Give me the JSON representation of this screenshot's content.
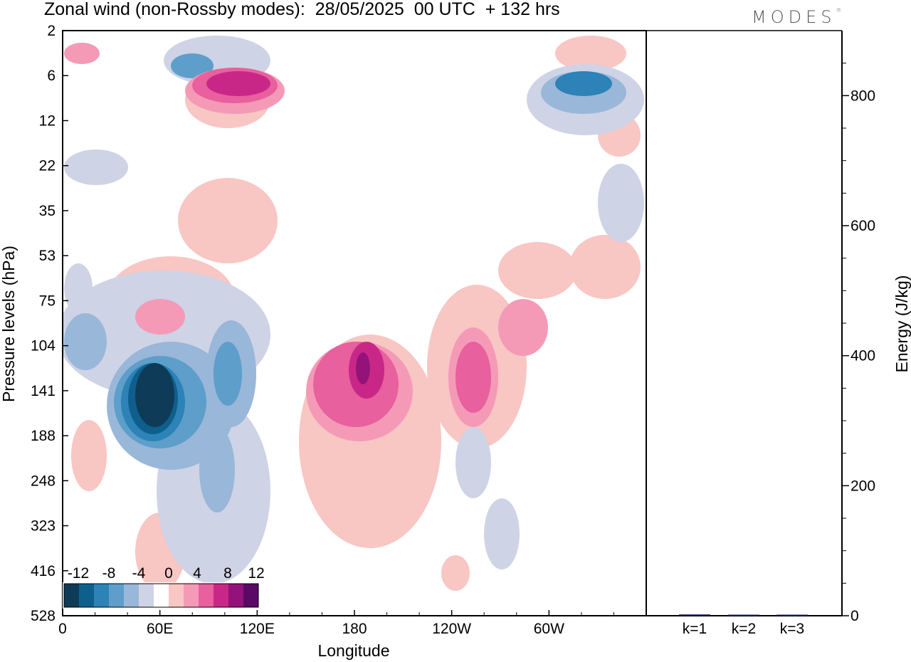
{
  "title": "Zonal wind (non-Rossby modes):  28/05/2025  00 UTC  + 132 hrs",
  "logo": {
    "text": "MODES",
    "mark": "®"
  },
  "chart_data": [
    {
      "type": "heatmap",
      "xlabel": "Longitude",
      "ylabel": "Pressure levels (hPa)",
      "x_ticks": [
        "0",
        "60E",
        "120E",
        "180",
        "120W",
        "60W"
      ],
      "y_ticks": [
        "2",
        "6",
        "12",
        "22",
        "35",
        "53",
        "75",
        "104",
        "141",
        "188",
        "248",
        "323",
        "416",
        "528"
      ],
      "y_reversed": true,
      "colorbar": {
        "labels": [
          "-12",
          "-8",
          "-4",
          "0",
          "4",
          "8",
          "12"
        ],
        "levels": [
          -14,
          -12,
          -10,
          -8,
          -6,
          -4,
          -2,
          2,
          4,
          6,
          8,
          10,
          12,
          14
        ],
        "colors": [
          "#0e3b57",
          "#0f5f8d",
          "#2d82b7",
          "#5d9ecb",
          "#99b7d8",
          "#cfd3e6",
          "#ffffff",
          "#f8c6c3",
          "#f49ab7",
          "#e8609d",
          "#c92788",
          "#94137a",
          "#5a0a64"
        ]
      },
      "features": [
        {
          "name": "negative jet core near 60E 141 hPa",
          "lon": 60,
          "level_hPa": 141,
          "value": -14
        },
        {
          "name": "negative core near 100E 141 hPa",
          "lon": 100,
          "level_hPa": 141,
          "value": -8
        },
        {
          "name": "positive core near 180 141 hPa",
          "lon": 180,
          "level_hPa": 130,
          "value": 10
        },
        {
          "name": "positive core near 125W 141 hPa",
          "lon": 235,
          "level_hPa": 130,
          "value": 8
        },
        {
          "name": "stratospheric positive band 60E-120E 6-8 hPa",
          "lon": 100,
          "level_hPa": 7,
          "value": 10
        },
        {
          "name": "stratospheric negative band near 60W 7 hPa",
          "lon": 300,
          "level_hPa": 8,
          "value": -8
        }
      ]
    },
    {
      "type": "bar",
      "categories": [
        "k=1",
        "k=2",
        "k=3"
      ],
      "values": [
        2,
        1,
        0.5
      ],
      "ylabel": "Energy (J/kg)",
      "y_ticks": [
        "0",
        "200",
        "400",
        "600",
        "800"
      ],
      "ylim": [
        0,
        900
      ],
      "bar_color": "#1a1f6b"
    }
  ]
}
